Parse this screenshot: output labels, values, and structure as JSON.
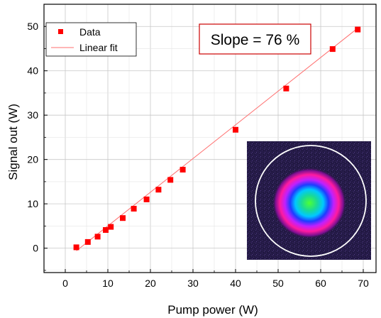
{
  "chart_data": {
    "type": "scatter",
    "xlabel": "Pump power (W)",
    "ylabel": "Signal out (W)",
    "xlim": [
      -5,
      73
    ],
    "ylim": [
      -5.5,
      55
    ],
    "xticks": [
      0,
      10,
      20,
      30,
      40,
      50,
      60,
      70
    ],
    "yticks": [
      0,
      10,
      20,
      30,
      40,
      50
    ],
    "xtick_labels": [
      "0",
      "10",
      "20",
      "30",
      "40",
      "50",
      "60",
      "70"
    ],
    "ytick_labels": [
      "0",
      "10",
      "20",
      "30",
      "40",
      "50"
    ],
    "grid": true,
    "legend_position": "top-left",
    "series": [
      {
        "name": "Data",
        "kind": "markers",
        "color": "#ff0000",
        "x": [
          2.6,
          5.3,
          7.6,
          9.5,
          10.7,
          13.5,
          16.1,
          19.1,
          21.9,
          24.7,
          27.6,
          40.0,
          51.9,
          62.8,
          68.7
        ],
        "y": [
          0.2,
          1.4,
          2.6,
          4.1,
          4.8,
          6.8,
          8.9,
          11.0,
          13.2,
          15.4,
          17.7,
          26.7,
          36.0,
          44.9,
          49.3
        ]
      },
      {
        "name": "Linear fit",
        "kind": "line",
        "color": "#ff6f6f",
        "x": [
          2.6,
          68.7
        ],
        "y": [
          -0.6,
          49.6
        ]
      }
    ],
    "annotation": "Slope = 76 %",
    "inset_image": "beam-profile-image"
  }
}
